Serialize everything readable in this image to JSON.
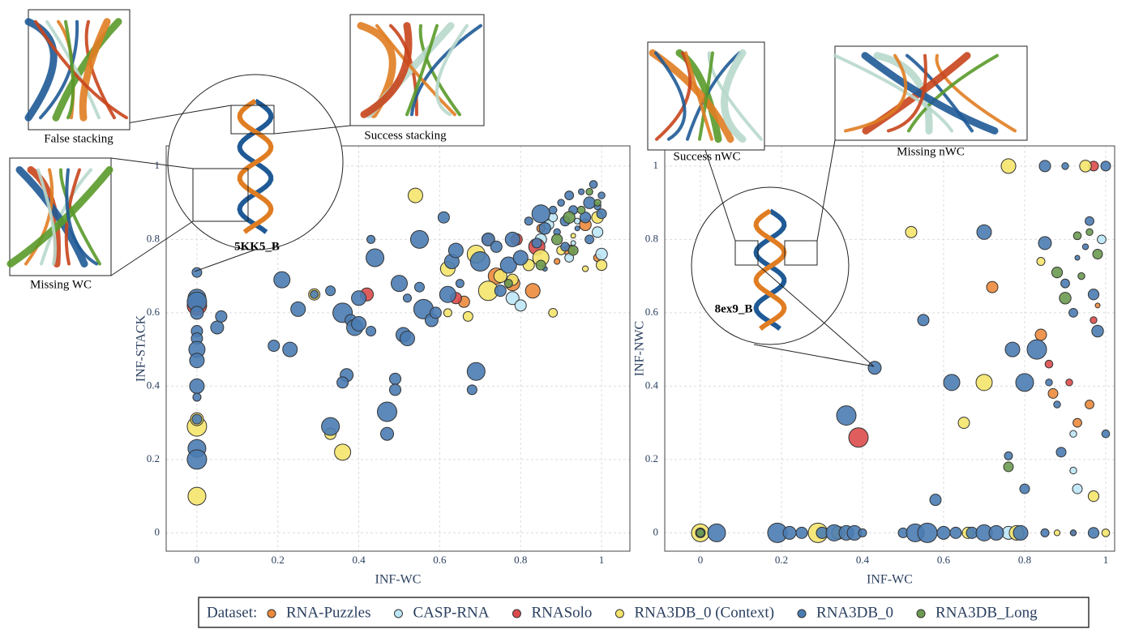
{
  "legend_title": "Dataset:",
  "chart_data": [
    {
      "type": "scatter",
      "xlabel": "INF-WC",
      "ylabel": "INF-STACK",
      "annotations": [
        "False stacking",
        "Success stacking",
        "Missing WC",
        "5KK5_B"
      ],
      "xlim": [
        -0.076,
        1.07
      ],
      "ylim": [
        -0.05,
        1.055
      ],
      "xticks": [
        0,
        0.2,
        0.4,
        0.6,
        0.8,
        1
      ],
      "yticks": [
        0,
        0.2,
        0.4,
        0.6,
        0.8,
        1
      ],
      "grid": true,
      "series": [
        {
          "name": "RNA-Puzzles",
          "color": "#ec8a3c",
          "x": [
            0.66,
            0.72,
            0.74,
            0.78,
            0.83,
            0.85,
            0.89,
            0.92,
            0.96,
            0.99
          ],
          "values": [
            0.63,
            0.8,
            0.7,
            0.68,
            0.66,
            0.83,
            0.74,
            0.77,
            0.84,
            0.75
          ]
        },
        {
          "name": "CASP-RNA",
          "color": "#bde6f6",
          "x": [
            0.78,
            0.8,
            0.85,
            0.87,
            0.88,
            0.92,
            0.93,
            0.94,
            0.99,
            1.0
          ],
          "values": [
            0.64,
            0.62,
            0.8,
            0.84,
            0.86,
            0.75,
            0.79,
            0.85,
            0.82,
            0.76
          ]
        },
        {
          "name": "RNASolo",
          "color": "#dc4b4b",
          "x": [
            0,
            0.42,
            0.64,
            0.79,
            0.84
          ],
          "values": [
            0.62,
            0.65,
            0.64,
            0.8,
            0.78
          ]
        },
        {
          "name": "RNA3DB_0 (Context)",
          "color": "#f4e46c",
          "x": [
            0,
            0,
            0,
            0.29,
            0.33,
            0.36,
            0.54,
            0.62,
            0.62,
            0.67,
            0.69,
            0.72,
            0.75,
            0.78,
            0.82,
            0.85,
            0.88,
            0.9,
            0.93,
            0.96,
            1.0,
            0.99
          ],
          "values": [
            0.1,
            0.29,
            0.31,
            0.65,
            0.27,
            0.22,
            0.92,
            0.72,
            0.6,
            0.59,
            0.76,
            0.66,
            0.7,
            0.69,
            0.73,
            0.75,
            0.6,
            0.77,
            0.81,
            0.72,
            0.73,
            0.86
          ]
        },
        {
          "name": "RNA3DB_0",
          "color": "#4a7cb2",
          "x": [
            0,
            0,
            0,
            0,
            0,
            0,
            0,
            0,
            0,
            0,
            0,
            0,
            0,
            0.05,
            0.06,
            0.19,
            0.21,
            0.23,
            0.25,
            0.29,
            0.33,
            0.33,
            0.36,
            0.37,
            0.36,
            0.38,
            0.39,
            0.4,
            0.4,
            0.43,
            0.43,
            0.44,
            0.47,
            0.47,
            0.49,
            0.49,
            0.5,
            0.51,
            0.52,
            0.52,
            0.55,
            0.55,
            0.56,
            0.58,
            0.59,
            0.61,
            0.62,
            0.63,
            0.64,
            0.65,
            0.68,
            0.69,
            0.7,
            0.72,
            0.74,
            0.75,
            0.77,
            0.78,
            0.8,
            0.82,
            0.84,
            0.85,
            0.86,
            0.88,
            0.89,
            0.9,
            0.91,
            0.92,
            0.93,
            0.94,
            0.95,
            0.96,
            0.97,
            0.98,
            0.99,
            1.0,
            1.0,
            0.97,
            0.91,
            0.86
          ],
          "values": [
            0.71,
            0.64,
            0.63,
            0.6,
            0.55,
            0.53,
            0.5,
            0.47,
            0.4,
            0.37,
            0.31,
            0.23,
            0.2,
            0.56,
            0.59,
            0.51,
            0.69,
            0.5,
            0.61,
            0.65,
            0.66,
            0.29,
            0.6,
            0.43,
            0.41,
            0.58,
            0.56,
            0.64,
            0.57,
            0.8,
            0.55,
            0.75,
            0.33,
            0.27,
            0.42,
            0.39,
            0.68,
            0.54,
            0.53,
            0.64,
            0.67,
            0.8,
            0.61,
            0.58,
            0.6,
            0.86,
            0.65,
            0.74,
            0.77,
            0.68,
            0.39,
            0.44,
            0.74,
            0.8,
            0.78,
            0.66,
            0.73,
            0.8,
            0.75,
            0.85,
            0.79,
            0.87,
            0.83,
            0.88,
            0.82,
            0.9,
            0.85,
            0.92,
            0.88,
            0.83,
            0.93,
            0.86,
            0.9,
            0.95,
            0.89,
            0.92,
            0.87,
            0.8,
            0.78,
            0.72
          ]
        },
        {
          "name": "RNA3DB_Long",
          "color": "#6c9a50",
          "x": [
            0.77,
            0.85,
            0.89,
            0.92,
            0.95,
            0.97,
            0.99,
            0.93
          ],
          "values": [
            0.68,
            0.73,
            0.8,
            0.86,
            0.88,
            0.93,
            0.9,
            0.77
          ]
        }
      ]
    },
    {
      "type": "scatter",
      "xlabel": "INF-WC",
      "ylabel": "INF-NWC",
      "annotations": [
        "Success nWC",
        "Missing nWC",
        "8ex9_B"
      ],
      "xlim": [
        -0.088,
        1.022
      ],
      "ylim": [
        -0.05,
        1.055
      ],
      "xticks": [
        0,
        0.2,
        0.4,
        0.6,
        0.8,
        1
      ],
      "yticks": [
        0,
        0.2,
        0.4,
        0.6,
        0.8,
        1
      ],
      "grid": true,
      "series": [
        {
          "name": "RNA-Puzzles",
          "color": "#ec8a3c",
          "x": [
            0.72,
            0.84,
            0.87,
            0.93,
            0.96,
            0.98,
            0.92
          ],
          "values": [
            0.67,
            0.54,
            0.38,
            0.3,
            0.35,
            0.62,
            0
          ]
        },
        {
          "name": "CASP-RNA",
          "color": "#bde6f6",
          "x": [
            0.76,
            0.92,
            0.92,
            0.93,
            0.99
          ],
          "values": [
            0,
            0.27,
            0.17,
            0.12,
            0.8
          ]
        },
        {
          "name": "RNASolo",
          "color": "#dc4b4b",
          "x": [
            0.39,
            0.86,
            0.91,
            0.97,
            0.97
          ],
          "values": [
            0.26,
            0.46,
            0.41,
            0.58,
            1
          ]
        },
        {
          "name": "RNA3DB_0 (Context)",
          "color": "#f4e46c",
          "x": [
            0,
            0.29,
            0.34,
            0.52,
            0.65,
            0.7,
            0.76,
            0.78,
            0.84,
            0.88,
            0.97,
            0.95,
            1.0,
            0.66
          ],
          "values": [
            0,
            0,
            0,
            0.82,
            0.3,
            0.41,
            1,
            0,
            0.74,
            0,
            0.1,
            1,
            0,
            0
          ]
        },
        {
          "name": "RNA3DB_0",
          "color": "#4a7cb2",
          "x": [
            0,
            0.04,
            0.19,
            0.22,
            0.25,
            0.3,
            0.33,
            0.36,
            0.38,
            0.4,
            0.5,
            0.53,
            0.56,
            0.6,
            0.63,
            0.67,
            0.7,
            0.73,
            0.79,
            0.85,
            0.92,
            0.97,
            0.36,
            0.43,
            0.55,
            0.58,
            0.62,
            0.7,
            0.77,
            0.76,
            0.8,
            0.8,
            0.83,
            0.85,
            0.86,
            0.88,
            0.89,
            0.9,
            0.92,
            0.93,
            0.95,
            0.97,
            0.98,
            1.0,
            0.85,
            0.9,
            1.0,
            0.96
          ],
          "values": [
            0,
            0,
            0,
            0,
            0,
            0,
            0,
            0,
            0,
            0,
            0,
            0,
            0,
            0,
            0,
            0,
            0,
            0,
            0,
            0,
            0,
            0,
            0.32,
            0.45,
            0.58,
            0.09,
            0.41,
            0.82,
            0.5,
            0.21,
            0.12,
            0.41,
            0.5,
            0.79,
            0.41,
            0.35,
            0.22,
            0.68,
            0.6,
            0.75,
            0.78,
            0.65,
            0.55,
            0.27,
            1,
            1,
            1,
            0.85
          ]
        },
        {
          "name": "RNA3DB_Long",
          "color": "#6c9a50",
          "x": [
            0,
            0.76,
            0.88,
            0.9,
            0.93,
            0.94,
            0.96,
            0.98
          ],
          "values": [
            0,
            0.18,
            0.71,
            0.64,
            0.81,
            0.7,
            0.82,
            0.76
          ]
        }
      ]
    }
  ]
}
